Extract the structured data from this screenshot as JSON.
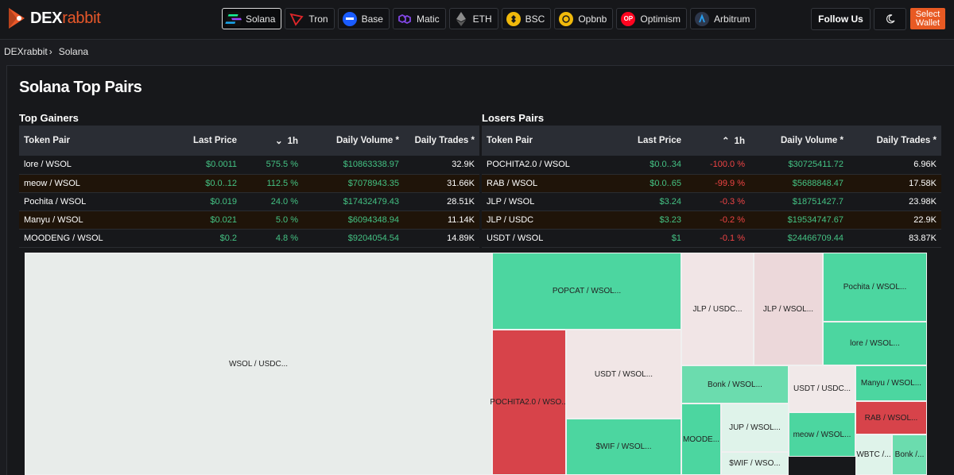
{
  "brand": {
    "name_a": "DEX",
    "name_b": "rabbit"
  },
  "chains": [
    {
      "label": "Solana",
      "icon": "solana-icon",
      "color": "#2a2a2a",
      "active": true
    },
    {
      "label": "Tron",
      "icon": "tron-icon",
      "color": "#e0262a"
    },
    {
      "label": "Base",
      "icon": "base-icon",
      "color": "#1a5cff"
    },
    {
      "label": "Matic",
      "icon": "matic-icon",
      "color": "#7b3fe4"
    },
    {
      "label": "ETH",
      "icon": "eth-icon",
      "color": "#5a5a5a"
    },
    {
      "label": "BSC",
      "icon": "bsc-icon",
      "color": "#f0b90b"
    },
    {
      "label": "Opbnb",
      "icon": "opbnb-icon",
      "color": "#f0b90b"
    },
    {
      "label": "Optimism",
      "icon": "optimism-icon",
      "color": "#ff0420"
    },
    {
      "label": "Arbitrum",
      "icon": "arbitrum-icon",
      "color": "#2d374b"
    }
  ],
  "header": {
    "follow": "Follow Us",
    "select_1": "Select",
    "select_2": "Wallet"
  },
  "breadcrumb": {
    "home": "DEXrabbit",
    "current": "Solana"
  },
  "page": {
    "title": "Solana Top Pairs"
  },
  "gainers": {
    "title": "Top Gainers",
    "columns": [
      "Token Pair",
      "Last Price",
      "1h",
      "Daily Volume *",
      "Daily Trades *"
    ],
    "rows": [
      {
        "pair": "lore / WSOL",
        "price": "$0.0011",
        "change": "575.5 %",
        "volume": "$10863338.97",
        "trades": "32.9K"
      },
      {
        "pair": "meow / WSOL",
        "price": "$0.0..12",
        "change": "112.5 %",
        "volume": "$7078943.35",
        "trades": "31.66K"
      },
      {
        "pair": "Pochita / WSOL",
        "price": "$0.019",
        "change": "24.0 %",
        "volume": "$17432479.43",
        "trades": "28.51K"
      },
      {
        "pair": "Manyu / WSOL",
        "price": "$0.021",
        "change": "5.0 %",
        "volume": "$6094348.94",
        "trades": "11.14K"
      },
      {
        "pair": "MOODENG / WSOL",
        "price": "$0.2",
        "change": "4.8 %",
        "volume": "$9204054.54",
        "trades": "14.89K"
      }
    ]
  },
  "losers": {
    "title": "Losers Pairs",
    "columns": [
      "Token Pair",
      "Last Price",
      "1h",
      "Daily Volume *",
      "Daily Trades *"
    ],
    "rows": [
      {
        "pair": "POCHITA2.0 / WSOL",
        "price": "$0.0..34",
        "change": "-100.0 %",
        "volume": "$30725411.72",
        "trades": "6.96K"
      },
      {
        "pair": "RAB / WSOL",
        "price": "$0.0..65",
        "change": "-99.9 %",
        "volume": "$5688848.47",
        "trades": "17.58K"
      },
      {
        "pair": "JLP / WSOL",
        "price": "$3.24",
        "change": "-0.3 %",
        "volume": "$18751427.7",
        "trades": "23.98K"
      },
      {
        "pair": "JLP / USDC",
        "price": "$3.23",
        "change": "-0.2 %",
        "volume": "$19534747.67",
        "trades": "22.9K"
      },
      {
        "pair": "USDT / WSOL",
        "price": "$1",
        "change": "-0.1 %",
        "volume": "$24466709.44",
        "trades": "83.87K"
      }
    ]
  },
  "treemap": [
    {
      "label": "WSOL / USDC...",
      "color": "#e8ecea"
    },
    {
      "label": "POPCAT / WSOL...",
      "color": "#4cd6a0"
    },
    {
      "label": "JLP / USDC...",
      "color": "#f1e5e6"
    },
    {
      "label": "JLP / WSOL...",
      "color": "#ecd8da"
    },
    {
      "label": "Pochita / WSOL...",
      "color": "#4cd6a0"
    },
    {
      "label": "lore / WSOL...",
      "color": "#4cd6a0"
    },
    {
      "label": "POCHITA2.0 / WSO...",
      "color": "#d7434a"
    },
    {
      "label": "USDT / WSOL...",
      "color": "#f1e6e6"
    },
    {
      "label": "Bonk / WSOL...",
      "color": "#6bdcae"
    },
    {
      "label": "USDT / USDC...",
      "color": "#f1e9e9"
    },
    {
      "label": "Manyu / WSOL...",
      "color": "#4cd6a0"
    },
    {
      "label": "RAB / WSOL...",
      "color": "#d7434a"
    },
    {
      "label": "$WIF / WSOL...",
      "color": "#4cd6a0"
    },
    {
      "label": "MOODE...",
      "color": "#4cd6a0"
    },
    {
      "label": "JUP / WSOL...",
      "color": "#dff3ea"
    },
    {
      "label": "meow / WSOL...",
      "color": "#4cd6a0"
    },
    {
      "label": "WBTC /...",
      "color": "#dff3ea"
    },
    {
      "label": "Bonk /...",
      "color": "#6bdcae"
    },
    {
      "label": "$WIF / WSO...",
      "color": "#dff3ea"
    }
  ]
}
